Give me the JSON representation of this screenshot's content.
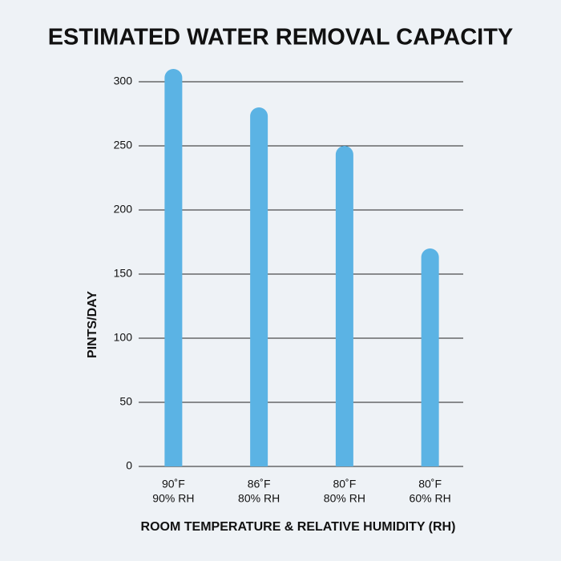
{
  "chart_data": {
    "type": "bar",
    "title": "ESTIMATED WATER REMOVAL CAPACITY",
    "y_label": "PINTS/DAY",
    "x_label": "ROOM TEMPERATURE & RELATIVE HUMIDITY (RH)",
    "categories": [
      [
        "90˚F",
        "90% RH"
      ],
      [
        "86˚F",
        "80% RH"
      ],
      [
        "80˚F",
        "80% RH"
      ],
      [
        "80˚F",
        "60% RH"
      ]
    ],
    "values": [
      310,
      280,
      250,
      170
    ],
    "color": "#5bb3e4",
    "ylim": [
      0,
      310
    ],
    "yticks": [
      0,
      50,
      100,
      150,
      200,
      250,
      300
    ],
    "grid": true
  }
}
